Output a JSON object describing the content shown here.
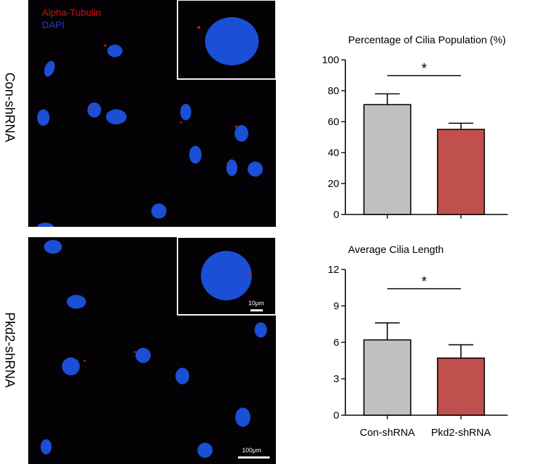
{
  "figure": {
    "row_labels": [
      "Con-shRNA",
      "Pkd2-shRNA"
    ],
    "legend": {
      "red": "Alpha-Tubulin",
      "blue": "DAPI"
    },
    "scale_bar_inset": "10μm",
    "scale_bar_main": "100μm",
    "colors": {
      "control_bar": "#c0c0c0",
      "knockdown_bar": "#c0504d",
      "nucleus": "#1a4fd6",
      "cilia": "#d01818",
      "background": "#050205"
    }
  },
  "chart_data": [
    {
      "type": "bar",
      "title": "Percentage of Cilia Population (%)",
      "categories": [
        "Con-shRNA",
        "Pkd2-shRNA"
      ],
      "values": [
        71,
        55
      ],
      "errors": [
        7,
        4
      ],
      "ylim": [
        0,
        100
      ],
      "yticks": [
        0,
        20,
        40,
        60,
        80,
        100
      ],
      "significance": "*",
      "xlabel": "",
      "ylabel": ""
    },
    {
      "type": "bar",
      "title": "Average Cilia Length",
      "categories": [
        "Con-shRNA",
        "Pkd2-shRNA"
      ],
      "values": [
        6.2,
        4.7
      ],
      "errors": [
        1.4,
        1.1
      ],
      "ylim": [
        0,
        12
      ],
      "yticks": [
        0,
        3,
        6,
        9,
        12
      ],
      "significance": "*",
      "xlabel": "",
      "ylabel": ""
    }
  ]
}
